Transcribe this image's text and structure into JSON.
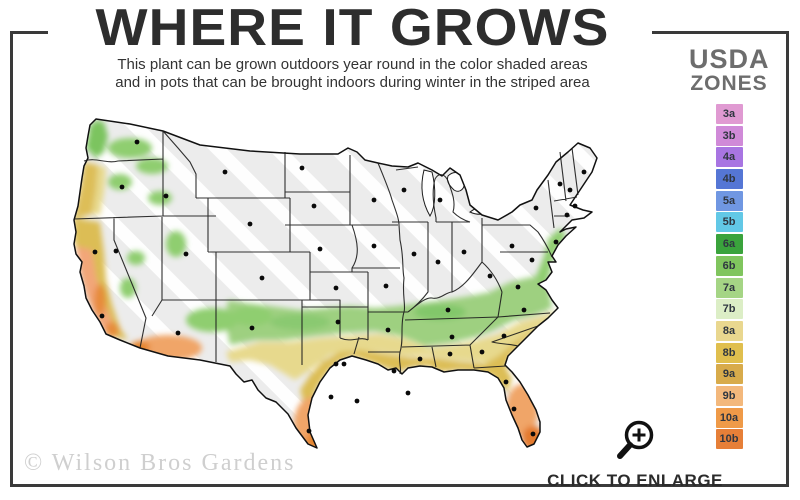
{
  "header": {
    "title": "WHERE IT GROWS",
    "subtitle_line1": "This plant can be grown outdoors year round in the color shaded areas",
    "subtitle_line2": "and in pots that can be brought indoors during winter in the striped area"
  },
  "legend": {
    "title_line1": "USDA",
    "title_line2": "ZONES",
    "zones": [
      {
        "label": "3a",
        "color": "#e09ad2"
      },
      {
        "label": "3b",
        "color": "#d08ad8"
      },
      {
        "label": "4a",
        "color": "#a875e2"
      },
      {
        "label": "4b",
        "color": "#5576d5"
      },
      {
        "label": "5a",
        "color": "#7097e2"
      },
      {
        "label": "5b",
        "color": "#62c8e6"
      },
      {
        "label": "6a",
        "color": "#3aa33c"
      },
      {
        "label": "6b",
        "color": "#80c55e"
      },
      {
        "label": "7a",
        "color": "#a5d585"
      },
      {
        "label": "7b",
        "color": "#dceec6"
      },
      {
        "label": "8a",
        "color": "#e9d78f"
      },
      {
        "label": "8b",
        "color": "#e0bf4e"
      },
      {
        "label": "9a",
        "color": "#d8ab4b"
      },
      {
        "label": "9b",
        "color": "#f3b87c"
      },
      {
        "label": "10a",
        "color": "#ef9a48"
      },
      {
        "label": "10b",
        "color": "#e67f38"
      }
    ]
  },
  "map": {
    "description": "United States map shaded by USDA hardiness zone; northern states shown in gray with white diagonal stripes, southern and coastal states shaded green to orange; black dots mark cities",
    "striped_fill": "#ececec",
    "zone_fills": {
      "green": "#9ed080",
      "light_green": "#bfe09a",
      "yellow": "#e7d98d",
      "gold": "#dcbd55",
      "orange": "#f2a76f",
      "deep_orange": "#e47a2e"
    }
  },
  "footer": {
    "enlarge_label": "CLICK TO ENLARGE",
    "watermark": "© Wilson Bros Gardens"
  }
}
